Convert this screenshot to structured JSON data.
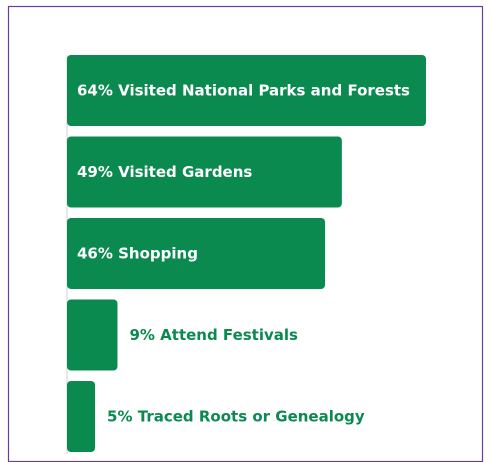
{
  "chart_data": {
    "type": "bar",
    "orientation": "horizontal",
    "categories": [
      "Visited National Parks and Forests",
      "Visited Gardens",
      "Shopping",
      "Attend Festivals",
      "Traced Roots or Genealogy"
    ],
    "values": [
      64,
      49,
      46,
      9,
      5
    ],
    "value_labels": [
      "64%",
      "49%",
      "46%",
      "9%",
      "5%"
    ],
    "color": "#0b8a4f"
  }
}
